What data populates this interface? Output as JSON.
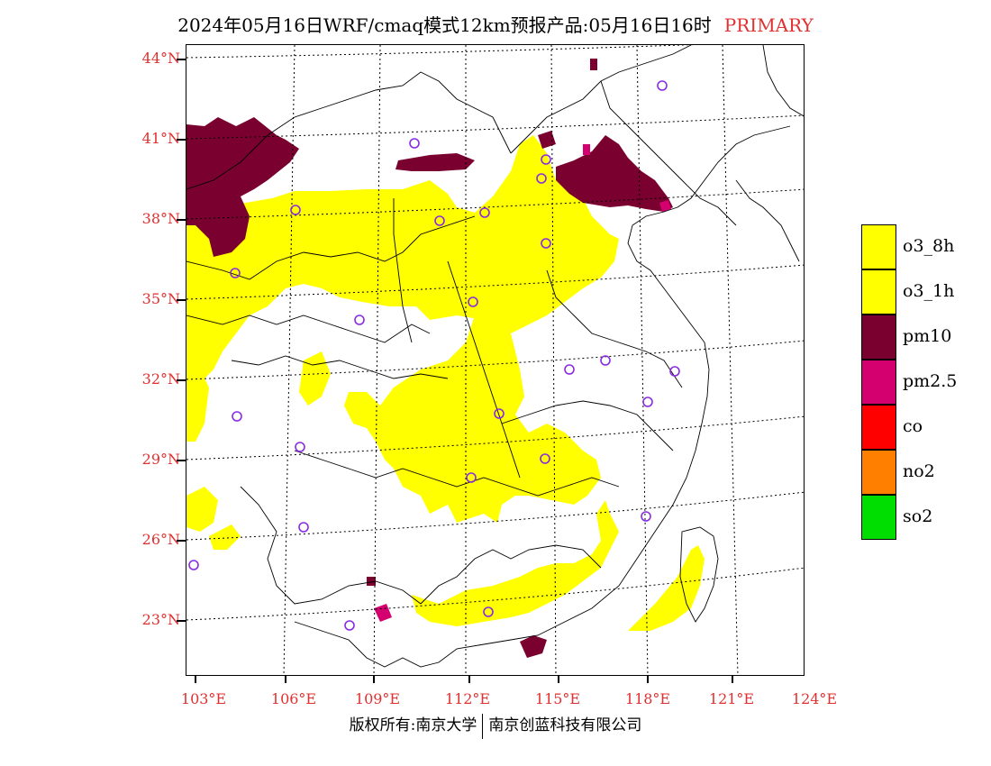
{
  "title": {
    "text": "2024年05月16日WRF/cmaq模式12km预报产品:05月16日16时",
    "tag": "PRIMARY"
  },
  "map": {
    "lat_labels": [
      "44°N",
      "41°N",
      "38°N",
      "35°N",
      "32°N",
      "29°N",
      "26°N",
      "23°N"
    ],
    "lon_labels": [
      "103°E",
      "106°E",
      "109°E",
      "112°E",
      "115°E",
      "118°E",
      "121°E",
      "124°E"
    ],
    "colors": {
      "o3": "#ffff00",
      "pm10": "#7a0030",
      "pm25": "#d4006f",
      "station": "#8a2be2",
      "border": "#000000",
      "grid": "#000000"
    }
  },
  "legend": [
    {
      "label": "o3_8h",
      "color": "#ffff00"
    },
    {
      "label": "o3_1h",
      "color": "#ffff00"
    },
    {
      "label": "pm10",
      "color": "#7a0030"
    },
    {
      "label": "pm2.5",
      "color": "#d4006f"
    },
    {
      "label": "co",
      "color": "#ff0000"
    },
    {
      "label": "no2",
      "color": "#ff8000"
    },
    {
      "label": "so2",
      "color": "#00dd00"
    }
  ],
  "footer": {
    "left": "版权所有:南京大学",
    "right": "南京创蓝科技有限公司"
  }
}
